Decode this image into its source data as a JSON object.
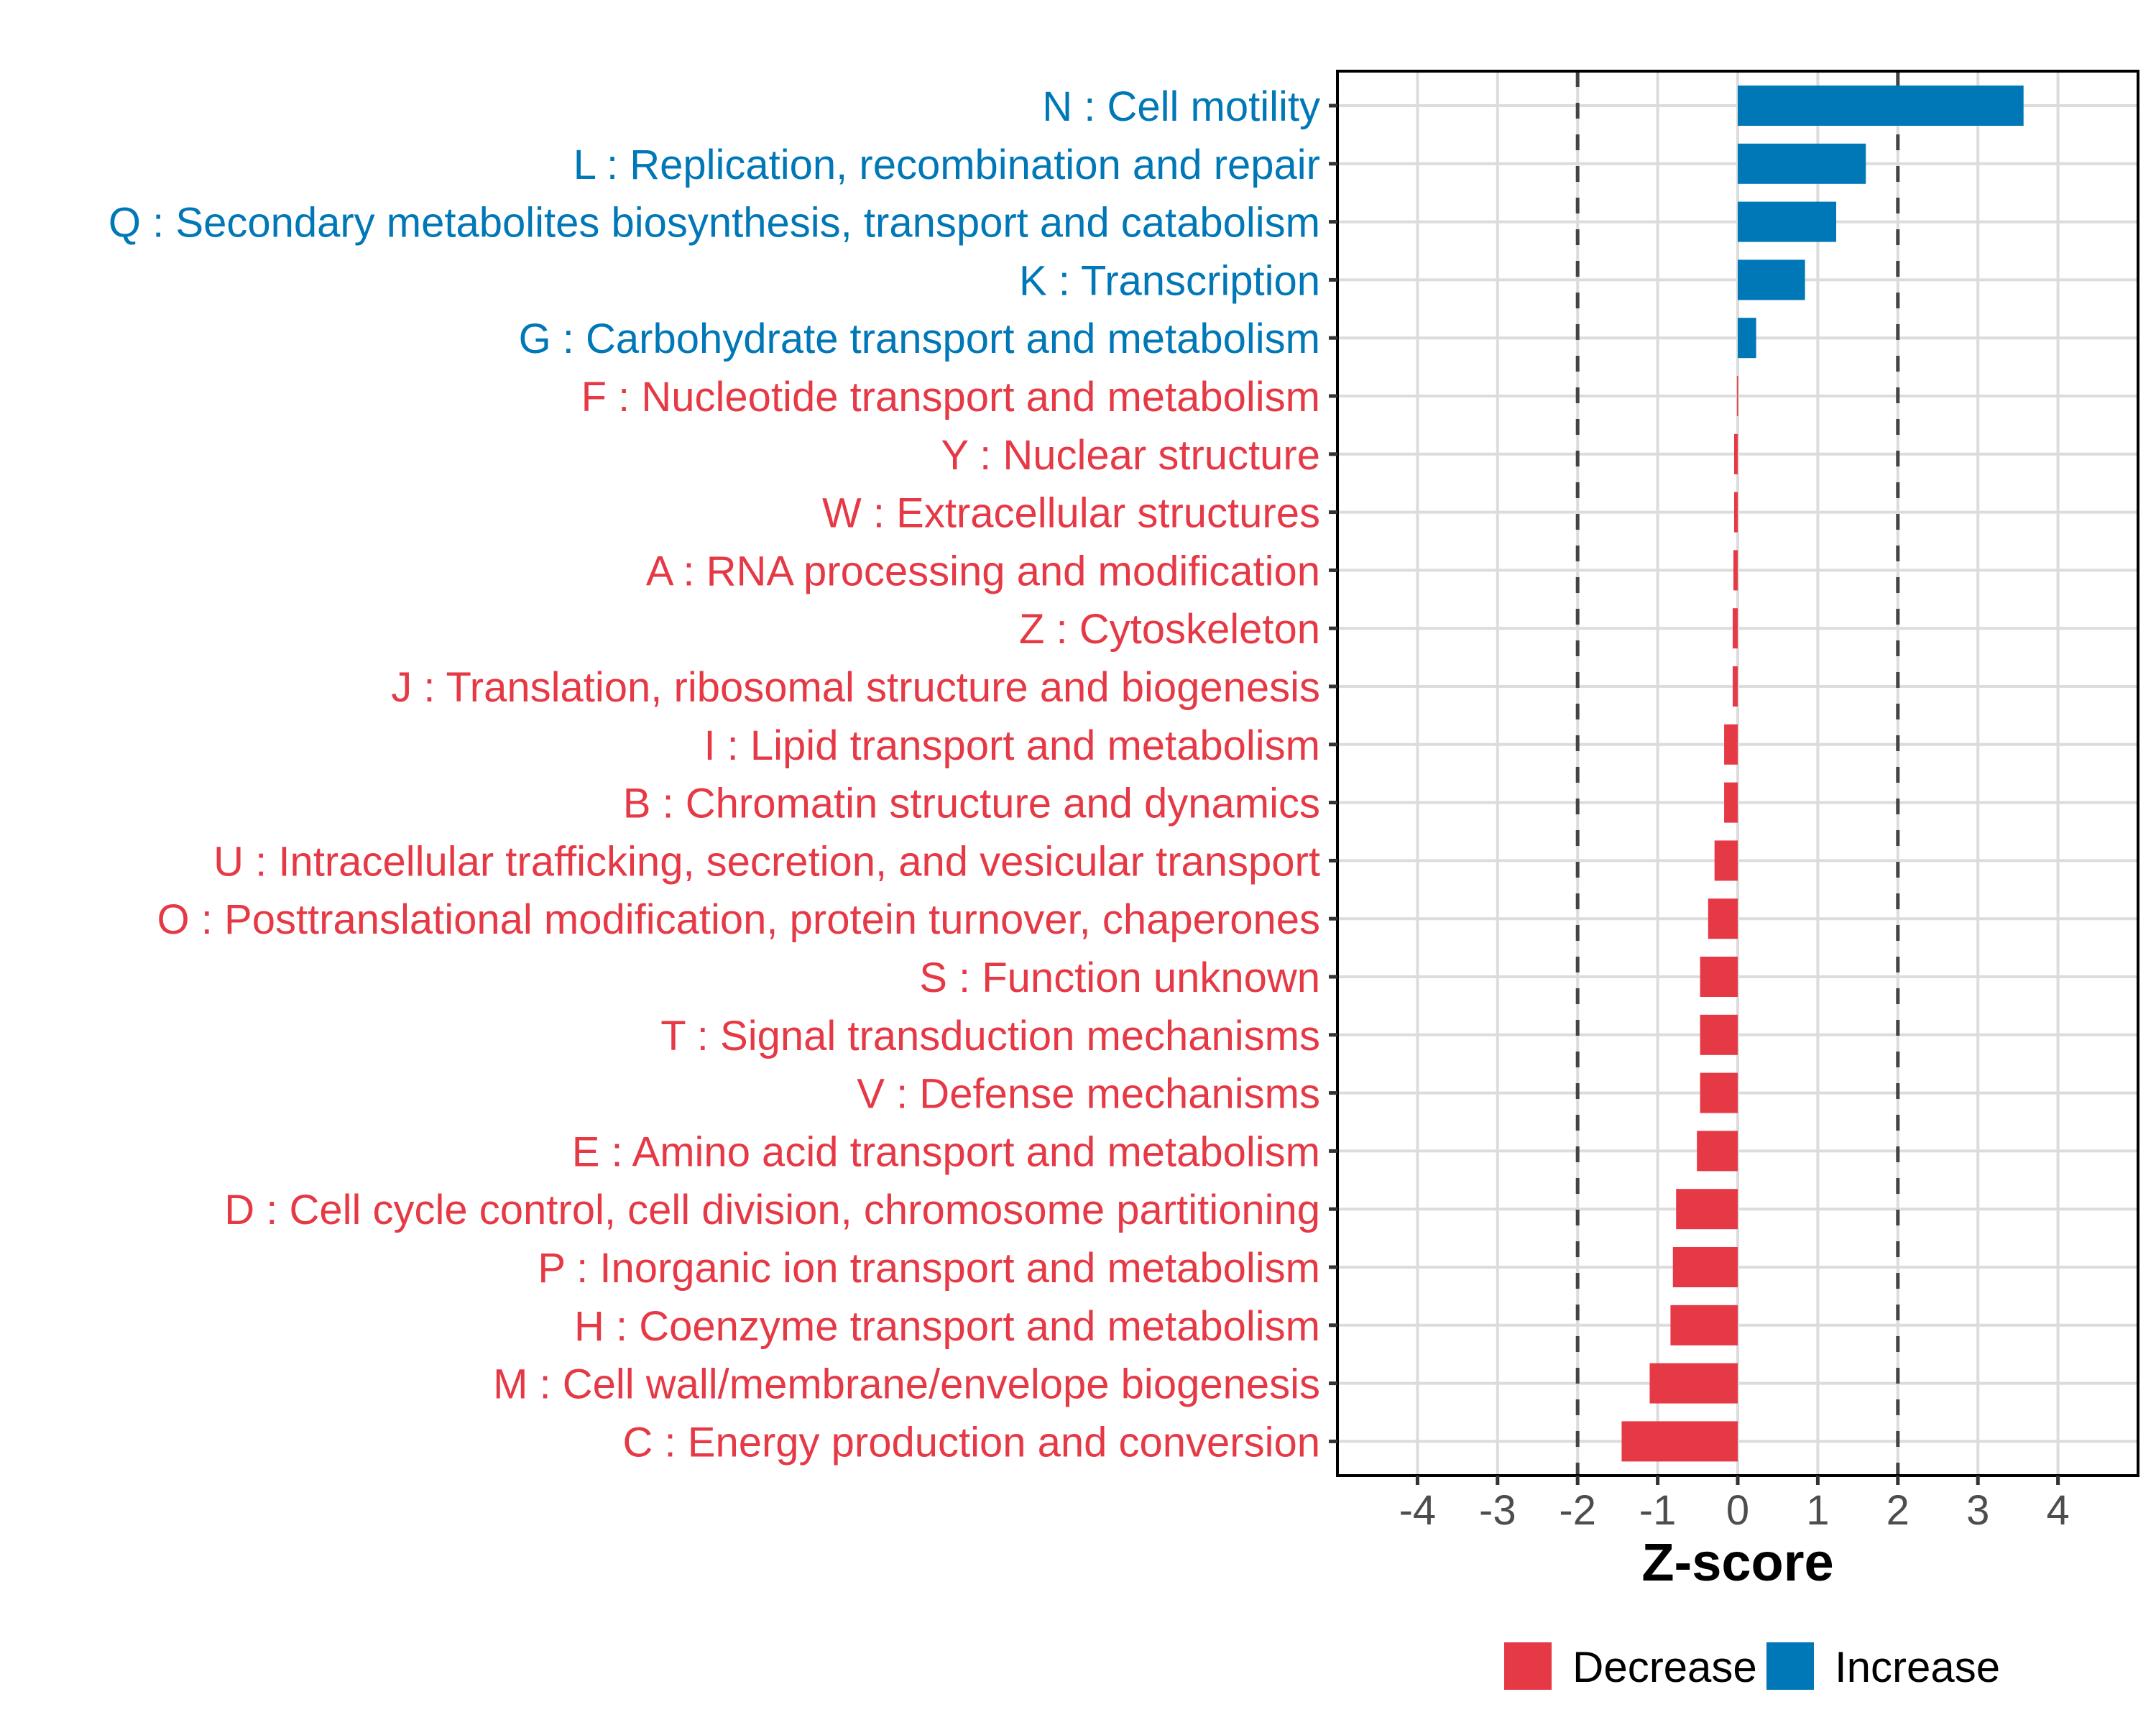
{
  "chart_data": {
    "type": "bar",
    "orientation": "horizontal",
    "title": "",
    "xlabel": "Z-score",
    "ylabel": "",
    "xlim": [
      -5,
      5
    ],
    "x_ticks": [
      -4,
      -3,
      -2,
      -1,
      0,
      1,
      2,
      3,
      4
    ],
    "x_tick_labels": [
      "-4",
      "-3",
      "-2",
      "-1",
      "0",
      "1",
      "2",
      "3",
      "4"
    ],
    "grid": true,
    "reference_lines": [
      {
        "x": -2,
        "style": "dashed"
      },
      {
        "x": 2,
        "style": "dashed"
      }
    ],
    "colors": {
      "Decrease": "#E63946",
      "Increase": "#0077B6"
    },
    "legend": {
      "position": "bottom",
      "entries": [
        {
          "label": "Decrease",
          "color": "#E63946"
        },
        {
          "label": "Increase",
          "color": "#0077B6"
        }
      ]
    },
    "categories": [
      "N : Cell motility",
      "L : Replication, recombination and repair",
      "Q : Secondary metabolites biosynthesis, transport and catabolism",
      "K : Transcription",
      "G : Carbohydrate transport and metabolism",
      "F : Nucleotide transport and metabolism",
      "Y : Nuclear structure",
      "W : Extracellular structures",
      "A : RNA processing and modification",
      "Z : Cytoskeleton",
      "J : Translation, ribosomal structure and biogenesis",
      "I : Lipid transport and metabolism",
      "B : Chromatin structure and dynamics",
      "U : Intracellular trafficking, secretion, and vesicular transport",
      "O : Posttranslational modification, protein turnover, chaperones",
      "S : Function unknown",
      "T : Signal transduction mechanisms",
      "V : Defense mechanisms",
      "E : Amino acid transport and metabolism",
      "D : Cell cycle control, cell division, chromosome partitioning",
      "P : Inorganic ion transport and metabolism",
      "H : Coenzyme transport and metabolism",
      "M : Cell wall/membrane/envelope biogenesis",
      "C : Energy production and conversion"
    ],
    "values": [
      3.57,
      1.6,
      1.23,
      0.84,
      0.23,
      -0.01,
      -0.045,
      -0.045,
      -0.054,
      -0.063,
      -0.063,
      -0.17,
      -0.17,
      -0.29,
      -0.37,
      -0.47,
      -0.47,
      -0.47,
      -0.51,
      -0.77,
      -0.81,
      -0.84,
      -1.1,
      -1.45
    ],
    "groups": [
      "Increase",
      "Increase",
      "Increase",
      "Increase",
      "Increase",
      "Decrease",
      "Decrease",
      "Decrease",
      "Decrease",
      "Decrease",
      "Decrease",
      "Decrease",
      "Decrease",
      "Decrease",
      "Decrease",
      "Decrease",
      "Decrease",
      "Decrease",
      "Decrease",
      "Decrease",
      "Decrease",
      "Decrease",
      "Decrease",
      "Decrease"
    ]
  }
}
